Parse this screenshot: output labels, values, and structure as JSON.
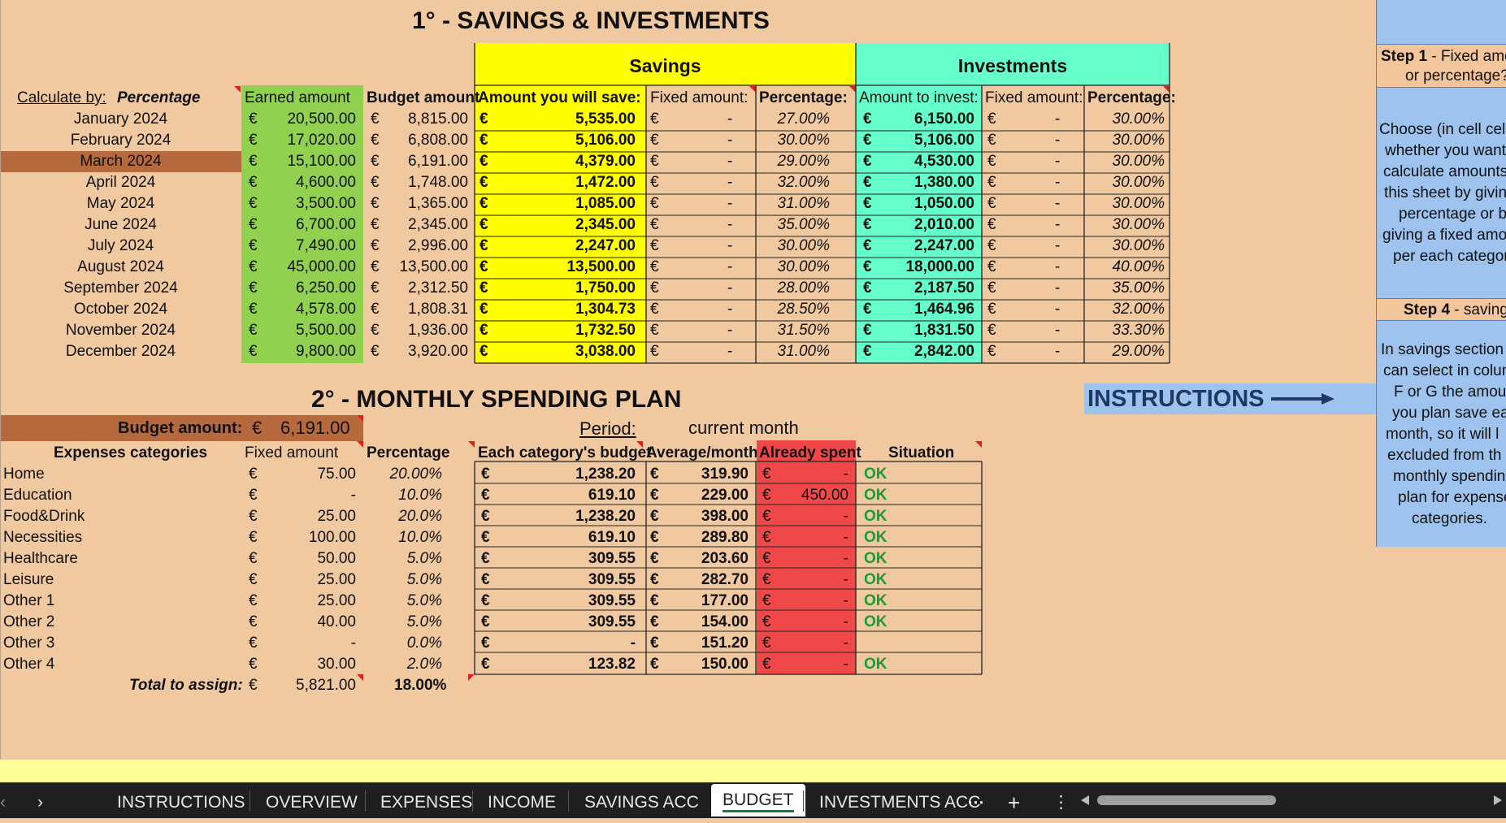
{
  "section1": {
    "title": "1° - SAVINGS & INVESTMENTS",
    "savings_header": "Savings",
    "investments_header": "Investments",
    "calc_label": "Calculate by:",
    "calc_value": "Percentage",
    "col_earned": "Earned amount",
    "col_budget": "Budget amount",
    "col_save": "Amount you will save:",
    "col_fixed_s": "Fixed amount:",
    "col_pct_s": "Percentage:",
    "col_invest": "Amount to invest:",
    "col_fixed_i": "Fixed amount:",
    "col_pct_i": "Percentage:",
    "currency": "€",
    "dash": "-",
    "rows": [
      {
        "month": "January 2024",
        "earned": "20,500.00",
        "budget": "8,815.00",
        "save": "5,535.00",
        "pct_s": "27.00%",
        "invest": "6,150.00",
        "pct_i": "30.00%"
      },
      {
        "month": "February 2024",
        "earned": "17,020.00",
        "budget": "6,808.00",
        "save": "5,106.00",
        "pct_s": "30.00%",
        "invest": "5,106.00",
        "pct_i": "30.00%"
      },
      {
        "month": "March 2024",
        "earned": "15,100.00",
        "budget": "6,191.00",
        "save": "4,379.00",
        "pct_s": "29.00%",
        "invest": "4,530.00",
        "pct_i": "30.00%"
      },
      {
        "month": "April 2024",
        "earned": "4,600.00",
        "budget": "1,748.00",
        "save": "1,472.00",
        "pct_s": "32.00%",
        "invest": "1,380.00",
        "pct_i": "30.00%"
      },
      {
        "month": "May 2024",
        "earned": "3,500.00",
        "budget": "1,365.00",
        "save": "1,085.00",
        "pct_s": "31.00%",
        "invest": "1,050.00",
        "pct_i": "30.00%"
      },
      {
        "month": "June 2024",
        "earned": "6,700.00",
        "budget": "2,345.00",
        "save": "2,345.00",
        "pct_s": "35.00%",
        "invest": "2,010.00",
        "pct_i": "30.00%"
      },
      {
        "month": "July 2024",
        "earned": "7,490.00",
        "budget": "2,996.00",
        "save": "2,247.00",
        "pct_s": "30.00%",
        "invest": "2,247.00",
        "pct_i": "30.00%"
      },
      {
        "month": "August 2024",
        "earned": "45,000.00",
        "budget": "13,500.00",
        "save": "13,500.00",
        "pct_s": "30.00%",
        "invest": "18,000.00",
        "pct_i": "40.00%"
      },
      {
        "month": "September 2024",
        "earned": "6,250.00",
        "budget": "2,312.50",
        "save": "1,750.00",
        "pct_s": "28.00%",
        "invest": "2,187.50",
        "pct_i": "35.00%"
      },
      {
        "month": "October 2024",
        "earned": "4,578.00",
        "budget": "1,808.31",
        "save": "1,304.73",
        "pct_s": "28.50%",
        "invest": "1,464.96",
        "pct_i": "32.00%"
      },
      {
        "month": "November 2024",
        "earned": "5,500.00",
        "budget": "1,936.00",
        "save": "1,732.50",
        "pct_s": "31.50%",
        "invest": "1,831.50",
        "pct_i": "33.30%"
      },
      {
        "month": "December 2024",
        "earned": "9,800.00",
        "budget": "3,920.00",
        "save": "3,038.00",
        "pct_s": "31.00%",
        "invest": "2,842.00",
        "pct_i": "29.00%"
      }
    ]
  },
  "section2": {
    "title": "2° - MONTHLY SPENDING PLAN",
    "budget_label": "Budget amount:",
    "budget_currency": "€",
    "budget_value": "6,191.00",
    "period_label": "Period:",
    "period_value": "current month",
    "col_category": "Expenses categories",
    "col_fixed": "Fixed amount",
    "col_pct": "Percentage",
    "col_cat_budget": "Each category's budget",
    "col_avg": "Average/month",
    "col_spent": "Already spent",
    "col_situation": "Situation",
    "rows": [
      {
        "cat": "Home",
        "fixed": "75.00",
        "pct": "20.00%",
        "cbudget": "1,238.20",
        "avg": "319.90",
        "spent": "-",
        "sit": "OK"
      },
      {
        "cat": "Education",
        "fixed": "-",
        "pct": "10.0%",
        "cbudget": "619.10",
        "avg": "229.00",
        "spent": "450.00",
        "sit": "OK"
      },
      {
        "cat": "Food&Drink",
        "fixed": "25.00",
        "pct": "20.0%",
        "cbudget": "1,238.20",
        "avg": "398.00",
        "spent": "-",
        "sit": "OK"
      },
      {
        "cat": "Necessities",
        "fixed": "100.00",
        "pct": "10.0%",
        "cbudget": "619.10",
        "avg": "289.80",
        "spent": "-",
        "sit": "OK"
      },
      {
        "cat": "Healthcare",
        "fixed": "50.00",
        "pct": "5.0%",
        "cbudget": "309.55",
        "avg": "203.60",
        "spent": "-",
        "sit": "OK"
      },
      {
        "cat": "Leisure",
        "fixed": "25.00",
        "pct": "5.0%",
        "cbudget": "309.55",
        "avg": "282.70",
        "spent": "-",
        "sit": "OK"
      },
      {
        "cat": "Other 1",
        "fixed": "25.00",
        "pct": "5.0%",
        "cbudget": "309.55",
        "avg": "177.00",
        "spent": "-",
        "sit": "OK"
      },
      {
        "cat": "Other 2",
        "fixed": "40.00",
        "pct": "5.0%",
        "cbudget": "309.55",
        "avg": "154.00",
        "spent": "-",
        "sit": "OK"
      },
      {
        "cat": "Other 3",
        "fixed": "-",
        "pct": "0.0%",
        "cbudget": "-",
        "avg": "151.20",
        "spent": "-",
        "sit": ""
      },
      {
        "cat": "Other 4",
        "fixed": "30.00",
        "pct": "2.0%",
        "cbudget": "123.82",
        "avg": "150.00",
        "spent": "-",
        "sit": "OK"
      }
    ],
    "total_label": "Total to assign:",
    "total_value": "5,821.00",
    "total_pct": "18.00%"
  },
  "instructions_button": "INSTRUCTIONS",
  "instructions_panel": {
    "step1_bold": "Step 1",
    "step1_text": " - Fixed amo",
    "step1_line2": "or percentage?",
    "choose_lines": [
      "Choose (in cell cell",
      "whether you want",
      "calculate amounts",
      "this sheet by givin",
      "percentage or b",
      "giving a fixed amo",
      "per each categor"
    ],
    "step4_bold": "Step 4",
    "step4_text": " - savings",
    "savings_lines": [
      "In savings section y",
      "can select in colun",
      "F or G the amour",
      "you plan save ea",
      "month, so it will l",
      "excluded from th",
      "monthly spendin",
      "plan for expense",
      "categories."
    ]
  },
  "tabs": [
    "INSTRUCTIONS",
    "OVERVIEW",
    "EXPENSES",
    "INCOME",
    "SAVINGS ACC",
    "BUDGET",
    "INVESTMENTS ACC"
  ],
  "active_tab": "BUDGET",
  "colors": {
    "background": "#f0c9a0",
    "green_earned": "#92d050",
    "yellow": "#ffff00",
    "mint": "#66ffcc",
    "red_spent": "#f04848",
    "brown_highlight": "#b5693c",
    "instructions_blue": "#9dc3ee",
    "ok_green": "#1a9a3a"
  }
}
